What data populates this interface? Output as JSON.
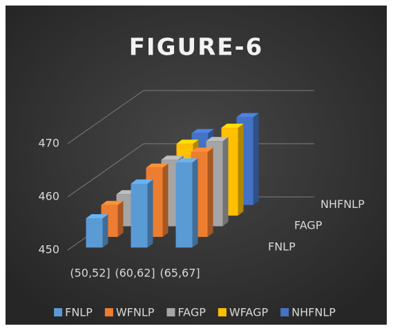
{
  "chart_data": {
    "type": "bar3d",
    "title": "FIGURE-6",
    "categories": [
      "(50,52]",
      "(60,62]",
      "(65,67]"
    ],
    "series": [
      {
        "name": "FNLP",
        "color": "#5b9bd5",
        "values": [
          455.5,
          462,
          466
        ]
      },
      {
        "name": "WFNLP",
        "color": "#ed7d31",
        "values": [
          456,
          463,
          466
        ]
      },
      {
        "name": "FAGP",
        "color": "#a5a5a5",
        "values": [
          456,
          462.5,
          466
        ]
      },
      {
        "name": "WFAGP",
        "color": "#ffc000",
        "values": [
          456,
          463.5,
          466.5
        ]
      },
      {
        "name": "NHFNLP",
        "color": "#4472c4",
        "values": [
          456,
          463.5,
          466.5
        ]
      }
    ],
    "depth_labels": [
      "chart_data.series.0.name",
      "chart_data.series.2.name",
      "chart_data.series.4.name"
    ],
    "ylim": [
      450,
      470
    ],
    "yticks": [
      450,
      460,
      470
    ],
    "grid": true,
    "legend": "bottom"
  }
}
